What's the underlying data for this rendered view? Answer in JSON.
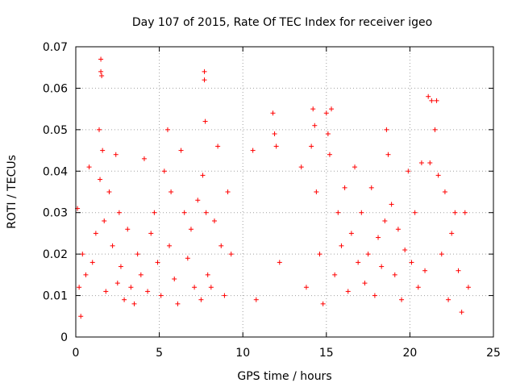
{
  "chart_data": {
    "type": "scatter",
    "title": "Day 107 of 2015, Rate Of TEC Index for receiver igeo",
    "xlabel": "GPS time / hours",
    "ylabel": "ROTI / TECUs",
    "xlim": [
      0,
      25
    ],
    "ylim": [
      0,
      0.07
    ],
    "x_ticks": [
      "0",
      "5",
      "10",
      "15",
      "20",
      "25"
    ],
    "y_ticks": [
      "0",
      "0.01",
      "0.02",
      "0.03",
      "0.04",
      "0.05",
      "0.06",
      "0.07"
    ],
    "grid": true,
    "marker": "+",
    "color": "#ff0000",
    "series": [
      {
        "x": [
          0.1,
          0.2,
          0.3,
          0.4,
          0.6,
          0.8,
          1.0,
          1.2,
          1.4,
          1.45,
          1.5,
          1.5,
          1.55,
          1.6,
          1.7,
          1.8,
          2.0,
          2.2,
          2.4,
          2.5,
          2.6,
          2.7,
          2.9,
          3.1,
          3.3,
          3.5,
          3.7,
          3.9,
          4.1,
          4.3,
          4.5,
          4.7,
          4.9,
          5.1,
          5.3,
          5.5,
          5.6,
          5.7,
          5.9,
          6.1,
          6.3,
          6.5,
          6.7,
          6.9,
          7.1,
          7.3,
          7.5,
          7.6,
          7.7,
          7.7,
          7.75,
          7.8,
          7.9,
          8.1,
          8.3,
          8.5,
          8.7,
          8.9,
          9.1,
          9.3,
          10.6,
          10.8,
          11.8,
          11.9,
          12.0,
          12.2,
          13.5,
          13.8,
          14.1,
          14.2,
          14.3,
          14.4,
          14.6,
          14.8,
          15.0,
          15.1,
          15.2,
          15.3,
          15.5,
          15.7,
          15.9,
          16.1,
          16.3,
          16.5,
          16.7,
          16.9,
          17.1,
          17.3,
          17.5,
          17.7,
          17.9,
          18.1,
          18.3,
          18.5,
          18.6,
          18.7,
          18.9,
          19.1,
          19.3,
          19.5,
          19.7,
          19.9,
          20.1,
          20.3,
          20.5,
          20.7,
          20.9,
          21.1,
          21.2,
          21.3,
          21.5,
          21.6,
          21.7,
          21.9,
          22.1,
          22.3,
          22.5,
          22.7,
          22.9,
          23.1,
          23.3,
          23.5
        ],
        "y": [
          0.031,
          0.012,
          0.005,
          0.02,
          0.015,
          0.041,
          0.018,
          0.025,
          0.05,
          0.038,
          0.067,
          0.064,
          0.063,
          0.045,
          0.028,
          0.011,
          0.035,
          0.022,
          0.044,
          0.013,
          0.03,
          0.017,
          0.009,
          0.026,
          0.012,
          0.008,
          0.02,
          0.015,
          0.043,
          0.011,
          0.025,
          0.03,
          0.018,
          0.01,
          0.04,
          0.05,
          0.022,
          0.035,
          0.014,
          0.008,
          0.045,
          0.03,
          0.019,
          0.026,
          0.012,
          0.033,
          0.009,
          0.039,
          0.064,
          0.062,
          0.052,
          0.03,
          0.015,
          0.012,
          0.028,
          0.046,
          0.022,
          0.01,
          0.035,
          0.02,
          0.045,
          0.009,
          0.054,
          0.049,
          0.046,
          0.018,
          0.041,
          0.012,
          0.046,
          0.055,
          0.051,
          0.035,
          0.02,
          0.008,
          0.054,
          0.049,
          0.044,
          0.055,
          0.015,
          0.03,
          0.022,
          0.036,
          0.011,
          0.025,
          0.041,
          0.018,
          0.03,
          0.013,
          0.02,
          0.036,
          0.01,
          0.024,
          0.017,
          0.028,
          0.05,
          0.044,
          0.032,
          0.015,
          0.026,
          0.009,
          0.021,
          0.04,
          0.018,
          0.03,
          0.012,
          0.042,
          0.016,
          0.058,
          0.042,
          0.057,
          0.05,
          0.057,
          0.039,
          0.02,
          0.035,
          0.009,
          0.025,
          0.03,
          0.016,
          0.006,
          0.03,
          0.012
        ]
      }
    ]
  }
}
